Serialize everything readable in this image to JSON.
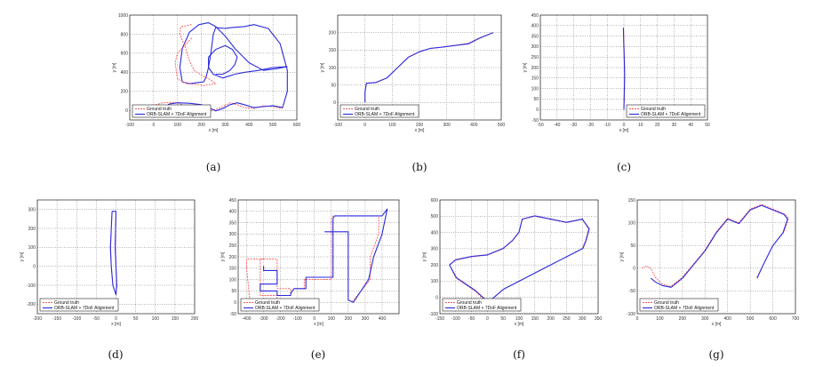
{
  "colors": {
    "ground_truth": "#ff5555",
    "estimate": "#2b2bdc"
  },
  "chart_data": [
    {
      "id": "a",
      "caption": "(a)",
      "type": "line",
      "xlabel": "x [m]",
      "ylabel": "y [m]",
      "xlim": [
        -100,
        600
      ],
      "ylim": [
        -100,
        1000
      ],
      "xticks": [
        -100,
        0,
        100,
        200,
        300,
        400,
        500,
        600
      ],
      "yticks": [
        0,
        200,
        400,
        600,
        800,
        1000
      ],
      "legend": [
        "Ground truth",
        "ORB-SLAM + 7DoF Alignment"
      ],
      "legend_position": "bottom-left",
      "series": [
        {
          "name": "Ground truth",
          "style": "dashed",
          "x": [
            0,
            10,
            40,
            70,
            100,
            140,
            180,
            230,
            260,
            290,
            320,
            350,
            380,
            420,
            460,
            500,
            540
          ],
          "y": [
            0,
            60,
            80,
            85,
            80,
            40,
            10,
            -10,
            10,
            40,
            80,
            60,
            30,
            20,
            50,
            40,
            20
          ]
        },
        {
          "name": "ORB-SLAM + 7DoF Alignment",
          "x": [
            60,
            70,
            100,
            150,
            200,
            230,
            260,
            290,
            320,
            350,
            380,
            420,
            460,
            500,
            540,
            560,
            560,
            530,
            480,
            420,
            380,
            330,
            300,
            260,
            250,
            240,
            230,
            220,
            210
          ],
          "y": [
            60,
            70,
            80,
            75,
            60,
            30,
            -5,
            20,
            60,
            80,
            60,
            30,
            40,
            50,
            30,
            200,
            420,
            700,
            860,
            900,
            880,
            870,
            860,
            870,
            800,
            600,
            450,
            350,
            300
          ]
        },
        {
          "name": "ORB-SLAM + 7DoF Alignment",
          "x": [
            210,
            150,
            120,
            110,
            120,
            150,
            190,
            230,
            260,
            300,
            340,
            400,
            460,
            520,
            560
          ],
          "y": [
            300,
            280,
            300,
            450,
            650,
            820,
            900,
            920,
            880,
            780,
            650,
            500,
            420,
            440,
            460
          ]
        },
        {
          "name": "Ground truth",
          "style": "dashed",
          "x": [
            160,
            130,
            100,
            90,
            100,
            140,
            190,
            210,
            230,
            260,
            240,
            200,
            170,
            150,
            130,
            110,
            115,
            160
          ],
          "y": [
            760,
            680,
            600,
            500,
            330,
            280,
            270,
            260,
            270,
            280,
            320,
            370,
            420,
            520,
            680,
            800,
            880,
            900
          ]
        },
        {
          "name": "ORB-SLAM + 7DoF Alignment",
          "x": [
            560,
            500,
            440,
            380,
            340,
            290,
            250,
            230,
            230,
            260,
            300,
            330,
            350,
            340,
            320,
            290,
            260
          ],
          "y": [
            460,
            450,
            420,
            400,
            380,
            340,
            380,
            450,
            560,
            640,
            680,
            640,
            560,
            480,
            420,
            380,
            380
          ]
        }
      ]
    },
    {
      "id": "b",
      "caption": "(b)",
      "type": "line",
      "xlabel": "x [m]",
      "ylabel": "y [m]",
      "xlim": [
        -100,
        500
      ],
      "ylim": [
        -50,
        250
      ],
      "xticks": [
        -100,
        0,
        100,
        200,
        300,
        400,
        500
      ],
      "yticks": [
        0,
        50,
        100,
        150,
        200
      ],
      "legend": [
        "Ground truth",
        "ORB-SLAM + 7DoF Alignment"
      ],
      "legend_position": "bottom-left",
      "series": [
        {
          "name": "Ground truth",
          "style": "dashed",
          "x": [
            0,
            0,
            5,
            40,
            80,
            120,
            160,
            200,
            240,
            280,
            320,
            380,
            420,
            470
          ],
          "y": [
            0,
            30,
            55,
            58,
            70,
            100,
            130,
            145,
            155,
            158,
            162,
            170,
            185,
            200
          ]
        },
        {
          "name": "ORB-SLAM + 7DoF Alignment",
          "x": [
            0,
            0,
            5,
            40,
            80,
            120,
            160,
            200,
            240,
            280,
            320,
            380,
            420,
            470
          ],
          "y": [
            0,
            30,
            55,
            57,
            70,
            100,
            130,
            145,
            155,
            158,
            162,
            168,
            184,
            200
          ]
        }
      ]
    },
    {
      "id": "c",
      "caption": "(c)",
      "type": "line",
      "xlabel": "x [m]",
      "ylabel": "y [m]",
      "xlim": [
        -50,
        50
      ],
      "ylim": [
        -50,
        450
      ],
      "xticks": [
        -50,
        -40,
        -30,
        -20,
        -10,
        0,
        10,
        20,
        30,
        40,
        50
      ],
      "yticks": [
        -50,
        0,
        50,
        100,
        150,
        200,
        250,
        300,
        350,
        400,
        450
      ],
      "legend": [
        "Ground truth",
        "ORB-SLAM + 7DoF Alignment"
      ],
      "legend_position": "bottom-right",
      "series": [
        {
          "name": "Ground truth",
          "style": "dashed",
          "x": [
            0,
            0.3,
            0.5,
            0.3,
            0,
            -0.2
          ],
          "y": [
            0,
            80,
            160,
            240,
            320,
            390
          ]
        },
        {
          "name": "ORB-SLAM + 7DoF Alignment",
          "x": [
            0,
            0.2,
            0.4,
            0.2,
            -0.1,
            -0.3
          ],
          "y": [
            0,
            80,
            160,
            240,
            320,
            390
          ]
        }
      ]
    },
    {
      "id": "d",
      "caption": "(d)",
      "type": "line",
      "xlabel": "x [m]",
      "ylabel": "y [m]",
      "xlim": [
        -200,
        200
      ],
      "ylim": [
        -250,
        350
      ],
      "xticks": [
        -200,
        -150,
        -100,
        -50,
        0,
        50,
        100,
        150,
        200
      ],
      "yticks": [
        -200,
        -100,
        0,
        100,
        200,
        300
      ],
      "legend": [
        "Ground truth",
        "ORB-SLAM + 7DoF Alignment"
      ],
      "legend_position": "bottom-left",
      "series": [
        {
          "name": "Ground truth",
          "style": "dashed",
          "x": [
            -10,
            -12,
            -15,
            -12,
            -8,
            0,
            2,
            0,
            -2,
            0,
            -10
          ],
          "y": [
            290,
            200,
            100,
            0,
            -100,
            -150,
            -100,
            0,
            100,
            290,
            290
          ]
        },
        {
          "name": "ORB-SLAM + 7DoF Alignment",
          "x": [
            -10,
            -12,
            -14,
            -12,
            -8,
            0,
            2,
            0,
            -2,
            0,
            -10
          ],
          "y": [
            290,
            200,
            100,
            0,
            -100,
            -150,
            -100,
            0,
            100,
            290,
            290
          ]
        }
      ]
    },
    {
      "id": "e",
      "caption": "(e)",
      "type": "line",
      "xlabel": "x [m]",
      "ylabel": "y [m]",
      "xlim": [
        -450,
        500
      ],
      "ylim": [
        -50,
        450
      ],
      "xticks": [
        -400,
        -300,
        -200,
        -100,
        0,
        100,
        200,
        300,
        400
      ],
      "yticks": [
        -50,
        0,
        50,
        100,
        150,
        200,
        250,
        300,
        350,
        400,
        450
      ],
      "legend": [
        "Ground truth",
        "ORB-SLAM + 7DoF Alignment"
      ],
      "legend_position": "bottom-left",
      "series": [
        {
          "name": "Ground truth",
          "style": "dashed",
          "x": [
            -300,
            -400,
            -400,
            -380,
            -220,
            -220,
            -320,
            -320,
            -220,
            -220,
            -140,
            -140,
            -120,
            -60,
            -60,
            100,
            100,
            110,
            380,
            380,
            330,
            330,
            220
          ],
          "y": [
            190,
            190,
            150,
            0,
            0,
            30,
            30,
            190,
            190,
            60,
            60,
            40,
            60,
            60,
            100,
            100,
            370,
            380,
            380,
            300,
            200,
            100,
            0
          ]
        },
        {
          "name": "ORB-SLAM + 7DoF Alignment",
          "x": [
            -300,
            -300,
            -220,
            -220,
            -320,
            -320,
            -220,
            -220,
            -140,
            -140,
            -120,
            -50,
            -50,
            110,
            110,
            120,
            400,
            430,
            400,
            350,
            320,
            230,
            200,
            200,
            100,
            60
          ],
          "y": [
            160,
            140,
            140,
            80,
            80,
            50,
            50,
            30,
            30,
            40,
            60,
            60,
            110,
            110,
            370,
            380,
            380,
            410,
            300,
            200,
            100,
            0,
            10,
            310,
            310,
            310
          ]
        }
      ]
    },
    {
      "id": "f",
      "caption": "(f)",
      "type": "line",
      "xlabel": "x [m]",
      "ylabel": "y [m]",
      "xlim": [
        -150,
        350
      ],
      "ylim": [
        -100,
        600
      ],
      "xticks": [
        -150,
        -100,
        -50,
        0,
        50,
        100,
        150,
        200,
        250,
        300,
        350
      ],
      "yticks": [
        -100,
        0,
        100,
        200,
        300,
        400,
        500,
        600
      ],
      "legend": [
        "Ground truth",
        "ORB-SLAM + 7DoF Alignment"
      ],
      "legend_position": "bottom-left",
      "series": [
        {
          "name": "Ground truth",
          "style": "dashed",
          "x": [
            -120,
            -100,
            -50,
            0,
            50,
            80,
            100,
            110,
            150,
            200,
            250,
            300,
            320,
            310,
            300,
            250,
            200,
            150,
            100,
            50,
            20,
            0,
            -40,
            -100,
            -120
          ],
          "y": [
            200,
            230,
            250,
            260,
            300,
            350,
            400,
            480,
            500,
            480,
            460,
            480,
            420,
            350,
            300,
            250,
            200,
            150,
            100,
            50,
            0,
            -30,
            40,
            120,
            200
          ]
        },
        {
          "name": "ORB-SLAM + 7DoF Alignment",
          "x": [
            -120,
            -100,
            -50,
            0,
            50,
            80,
            100,
            110,
            150,
            200,
            250,
            300,
            322,
            312,
            302,
            252,
            202,
            152,
            102,
            52,
            22,
            2,
            -38,
            -98,
            -120
          ],
          "y": [
            200,
            232,
            252,
            262,
            302,
            352,
            402,
            482,
            502,
            482,
            462,
            482,
            422,
            352,
            302,
            252,
            202,
            152,
            102,
            52,
            2,
            -28,
            42,
            122,
            200
          ]
        }
      ]
    },
    {
      "id": "g",
      "caption": "(g)",
      "type": "line",
      "xlabel": "x [m]",
      "ylabel": "y [m]",
      "xlim": [
        0,
        700
      ],
      "ylim": [
        -100,
        150
      ],
      "xticks": [
        0,
        100,
        200,
        300,
        400,
        500,
        600,
        700
      ],
      "yticks": [
        -100,
        -50,
        0,
        50,
        100,
        150
      ],
      "legend": [
        "Ground truth",
        "ORB-SLAM + 7DoF Alignment"
      ],
      "legend_position": "bottom-left",
      "series": [
        {
          "name": "Ground truth",
          "style": "dashed",
          "x": [
            20,
            40,
            60,
            80,
            110,
            150,
            200,
            250,
            300,
            350,
            400,
            450,
            500,
            550,
            600,
            650,
            670,
            650,
            600,
            560,
            530
          ],
          "y": [
            0,
            5,
            0,
            -20,
            -35,
            -40,
            -20,
            10,
            40,
            80,
            110,
            100,
            130,
            140,
            130,
            120,
            110,
            80,
            50,
            10,
            -20
          ]
        },
        {
          "name": "ORB-SLAM + 7DoF Alignment",
          "x": [
            60,
            80,
            110,
            150,
            200,
            250,
            300,
            350,
            400,
            450,
            500,
            550,
            600,
            650,
            665,
            645,
            598,
            558,
            530
          ],
          "y": [
            -22,
            -30,
            -38,
            -42,
            -22,
            8,
            38,
            78,
            108,
            98,
            128,
            138,
            128,
            118,
            108,
            78,
            48,
            8,
            -22
          ]
        }
      ]
    }
  ]
}
